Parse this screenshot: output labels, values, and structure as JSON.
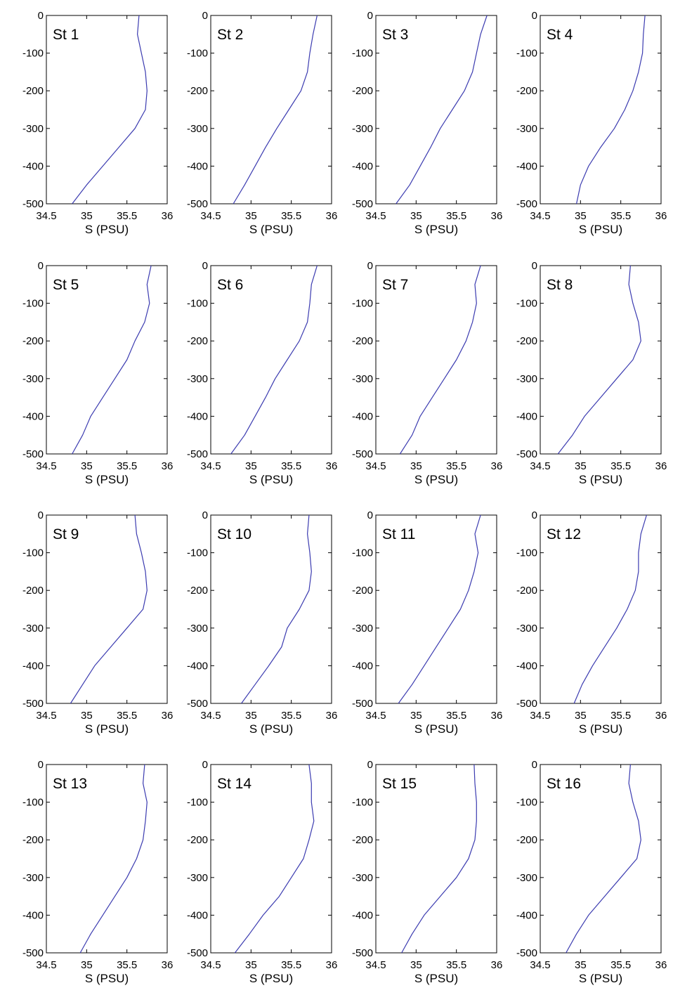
{
  "figure": {
    "line_color": "#3b3bb0"
  },
  "chart_data": [
    {
      "type": "line",
      "title": "St 1",
      "xlabel": "S (PSU)",
      "ylabel": "",
      "xlim": [
        34.5,
        36
      ],
      "ylim": [
        -500,
        0
      ],
      "xticks": [
        "34.5",
        "35",
        "35.5",
        "36"
      ],
      "yticks": [
        "0",
        "-100",
        "-200",
        "-300",
        "-400",
        "-500"
      ],
      "series": [
        {
          "x": [
            35.65,
            35.63,
            35.68,
            35.73,
            35.75,
            35.73,
            35.6,
            35.4,
            35.2,
            35.0,
            34.82
          ],
          "y": [
            0,
            -50,
            -100,
            -150,
            -200,
            -250,
            -300,
            -350,
            -400,
            -450,
            -500
          ]
        }
      ]
    },
    {
      "type": "line",
      "title": "St 2",
      "xlabel": "S (PSU)",
      "ylabel": "",
      "xlim": [
        34.5,
        36
      ],
      "ylim": [
        -500,
        0
      ],
      "xticks": [
        "34.5",
        "35",
        "35.5",
        "36"
      ],
      "yticks": [
        "0",
        "-100",
        "-200",
        "-300",
        "-400",
        "-500"
      ],
      "series": [
        {
          "x": [
            35.82,
            35.77,
            35.73,
            35.7,
            35.62,
            35.47,
            35.32,
            35.18,
            35.05,
            34.92,
            34.78
          ],
          "y": [
            0,
            -50,
            -100,
            -150,
            -200,
            -250,
            -300,
            -350,
            -400,
            -450,
            -500
          ]
        }
      ]
    },
    {
      "type": "line",
      "title": "St 3",
      "xlabel": "S (PSU)",
      "ylabel": "",
      "xlim": [
        34.5,
        36
      ],
      "ylim": [
        -500,
        0
      ],
      "xticks": [
        "34.5",
        "35",
        "35.5",
        "36"
      ],
      "yticks": [
        "0",
        "-100",
        "-200",
        "-300",
        "-400",
        "-500"
      ],
      "series": [
        {
          "x": [
            35.88,
            35.8,
            35.75,
            35.7,
            35.6,
            35.45,
            35.3,
            35.18,
            35.05,
            34.92,
            34.75
          ],
          "y": [
            0,
            -50,
            -100,
            -150,
            -200,
            -250,
            -300,
            -350,
            -400,
            -450,
            -500
          ]
        }
      ]
    },
    {
      "type": "line",
      "title": "St 4",
      "xlabel": "S (PSU)",
      "ylabel": "",
      "xlim": [
        34.5,
        36
      ],
      "ylim": [
        -500,
        0
      ],
      "xticks": [
        "34.5",
        "35",
        "35.5",
        "36"
      ],
      "yticks": [
        "0",
        "-100",
        "-200",
        "-300",
        "-400",
        "-500"
      ],
      "series": [
        {
          "x": [
            35.8,
            35.78,
            35.77,
            35.72,
            35.65,
            35.55,
            35.42,
            35.25,
            35.1,
            35.0,
            34.95
          ],
          "y": [
            0,
            -50,
            -100,
            -150,
            -200,
            -250,
            -300,
            -350,
            -400,
            -450,
            -500
          ]
        }
      ]
    },
    {
      "type": "line",
      "title": "St 5",
      "xlabel": "S (PSU)",
      "ylabel": "",
      "xlim": [
        34.5,
        36
      ],
      "ylim": [
        -500,
        0
      ],
      "xticks": [
        "34.5",
        "35",
        "35.5",
        "36"
      ],
      "yticks": [
        "0",
        "-100",
        "-200",
        "-300",
        "-400",
        "-500"
      ],
      "series": [
        {
          "x": [
            35.8,
            35.75,
            35.78,
            35.72,
            35.6,
            35.5,
            35.35,
            35.2,
            35.05,
            34.95,
            34.82
          ],
          "y": [
            0,
            -50,
            -100,
            -150,
            -200,
            -250,
            -300,
            -350,
            -400,
            -450,
            -500
          ]
        }
      ]
    },
    {
      "type": "line",
      "title": "St 6",
      "xlabel": "S (PSU)",
      "ylabel": "",
      "xlim": [
        34.5,
        36
      ],
      "ylim": [
        -500,
        0
      ],
      "xticks": [
        "34.5",
        "35",
        "35.5",
        "36"
      ],
      "yticks": [
        "0",
        "-100",
        "-200",
        "-300",
        "-400",
        "-500"
      ],
      "series": [
        {
          "x": [
            35.82,
            35.75,
            35.73,
            35.7,
            35.6,
            35.45,
            35.3,
            35.18,
            35.05,
            34.92,
            34.75
          ],
          "y": [
            0,
            -50,
            -100,
            -150,
            -200,
            -250,
            -300,
            -350,
            -400,
            -450,
            -500
          ]
        }
      ]
    },
    {
      "type": "line",
      "title": "St 7",
      "xlabel": "S (PSU)",
      "ylabel": "",
      "xlim": [
        34.5,
        36
      ],
      "ylim": [
        -500,
        0
      ],
      "xticks": [
        "34.5",
        "35",
        "35.5",
        "36"
      ],
      "yticks": [
        "0",
        "-100",
        "-200",
        "-300",
        "-400",
        "-500"
      ],
      "series": [
        {
          "x": [
            35.8,
            35.73,
            35.75,
            35.7,
            35.62,
            35.5,
            35.35,
            35.2,
            35.05,
            34.95,
            34.8
          ],
          "y": [
            0,
            -50,
            -100,
            -150,
            -200,
            -250,
            -300,
            -350,
            -400,
            -450,
            -500
          ]
        }
      ]
    },
    {
      "type": "line",
      "title": "St 8",
      "xlabel": "S (PSU)",
      "ylabel": "",
      "xlim": [
        34.5,
        36
      ],
      "ylim": [
        -500,
        0
      ],
      "xticks": [
        "34.5",
        "35",
        "35.5",
        "36"
      ],
      "yticks": [
        "0",
        "-100",
        "-200",
        "-300",
        "-400",
        "-500"
      ],
      "series": [
        {
          "x": [
            35.62,
            35.6,
            35.65,
            35.72,
            35.75,
            35.65,
            35.45,
            35.25,
            35.05,
            34.9,
            34.72
          ],
          "y": [
            0,
            -50,
            -100,
            -150,
            -200,
            -250,
            -300,
            -350,
            -400,
            -450,
            -500
          ]
        }
      ]
    },
    {
      "type": "line",
      "title": "St 9",
      "xlabel": "S (PSU)",
      "ylabel": "",
      "xlim": [
        34.5,
        36
      ],
      "ylim": [
        -500,
        0
      ],
      "xticks": [
        "34.5",
        "35",
        "35.5",
        "36"
      ],
      "yticks": [
        "0",
        "-100",
        "-200",
        "-300",
        "-400",
        "-500"
      ],
      "series": [
        {
          "x": [
            35.6,
            35.62,
            35.68,
            35.73,
            35.75,
            35.7,
            35.5,
            35.3,
            35.1,
            34.95,
            34.8
          ],
          "y": [
            0,
            -50,
            -100,
            -150,
            -200,
            -250,
            -300,
            -350,
            -400,
            -450,
            -500
          ]
        }
      ]
    },
    {
      "type": "line",
      "title": "St 10",
      "xlabel": "S (PSU)",
      "ylabel": "",
      "xlim": [
        34.5,
        36
      ],
      "ylim": [
        -500,
        0
      ],
      "xticks": [
        "34.5",
        "35",
        "35.5",
        "36"
      ],
      "yticks": [
        "0",
        "-100",
        "-200",
        "-300",
        "-400",
        "-500"
      ],
      "series": [
        {
          "x": [
            35.72,
            35.7,
            35.73,
            35.75,
            35.72,
            35.6,
            35.45,
            35.38,
            35.22,
            35.05,
            34.88
          ],
          "y": [
            0,
            -50,
            -100,
            -150,
            -200,
            -250,
            -300,
            -350,
            -400,
            -450,
            -500
          ]
        }
      ]
    },
    {
      "type": "line",
      "title": "St 11",
      "xlabel": "S (PSU)",
      "ylabel": "",
      "xlim": [
        34.5,
        36
      ],
      "ylim": [
        -500,
        0
      ],
      "xticks": [
        "34.5",
        "35",
        "35.5",
        "36"
      ],
      "yticks": [
        "0",
        "-100",
        "-200",
        "-300",
        "-400",
        "-500"
      ],
      "series": [
        {
          "x": [
            35.8,
            35.73,
            35.77,
            35.72,
            35.65,
            35.55,
            35.4,
            35.25,
            35.1,
            34.95,
            34.78
          ],
          "y": [
            0,
            -50,
            -100,
            -150,
            -200,
            -250,
            -300,
            -350,
            -400,
            -450,
            -500
          ]
        }
      ]
    },
    {
      "type": "line",
      "title": "St 12",
      "xlabel": "S (PSU)",
      "ylabel": "",
      "xlim": [
        34.5,
        36
      ],
      "ylim": [
        -500,
        0
      ],
      "xticks": [
        "34.5",
        "35",
        "35.5",
        "36"
      ],
      "yticks": [
        "0",
        "-100",
        "-200",
        "-300",
        "-400",
        "-500"
      ],
      "series": [
        {
          "x": [
            35.82,
            35.75,
            35.72,
            35.72,
            35.68,
            35.58,
            35.45,
            35.3,
            35.15,
            35.02,
            34.92
          ],
          "y": [
            0,
            -50,
            -100,
            -150,
            -200,
            -250,
            -300,
            -350,
            -400,
            -450,
            -500
          ]
        }
      ]
    },
    {
      "type": "line",
      "title": "St 13",
      "xlabel": "S (PSU)",
      "ylabel": "",
      "xlim": [
        34.5,
        36
      ],
      "ylim": [
        -500,
        0
      ],
      "xticks": [
        "34.5",
        "35",
        "35.5",
        "36"
      ],
      "yticks": [
        "0",
        "-100",
        "-200",
        "-300",
        "-400",
        "-500"
      ],
      "series": [
        {
          "x": [
            35.72,
            35.7,
            35.75,
            35.73,
            35.7,
            35.62,
            35.5,
            35.35,
            35.2,
            35.05,
            34.92
          ],
          "y": [
            0,
            -50,
            -100,
            -150,
            -200,
            -250,
            -300,
            -350,
            -400,
            -450,
            -500
          ]
        }
      ]
    },
    {
      "type": "line",
      "title": "St 14",
      "xlabel": "S (PSU)",
      "ylabel": "",
      "xlim": [
        34.5,
        36
      ],
      "ylim": [
        -500,
        0
      ],
      "xticks": [
        "34.5",
        "35",
        "35.5",
        "36"
      ],
      "yticks": [
        "0",
        "-100",
        "-200",
        "-300",
        "-400",
        "-500"
      ],
      "series": [
        {
          "x": [
            35.72,
            35.75,
            35.75,
            35.78,
            35.72,
            35.65,
            35.5,
            35.35,
            35.15,
            34.98,
            34.8
          ],
          "y": [
            0,
            -50,
            -100,
            -150,
            -200,
            -250,
            -300,
            -350,
            -400,
            -450,
            -500
          ]
        }
      ]
    },
    {
      "type": "line",
      "title": "St 15",
      "xlabel": "S (PSU)",
      "ylabel": "",
      "xlim": [
        34.5,
        36
      ],
      "ylim": [
        -500,
        0
      ],
      "xticks": [
        "34.5",
        "35",
        "35.5",
        "36"
      ],
      "yticks": [
        "0",
        "-100",
        "-200",
        "-300",
        "-400",
        "-500"
      ],
      "series": [
        {
          "x": [
            35.72,
            35.73,
            35.75,
            35.75,
            35.73,
            35.65,
            35.5,
            35.3,
            35.1,
            34.95,
            34.82
          ],
          "y": [
            0,
            -50,
            -100,
            -150,
            -200,
            -250,
            -300,
            -350,
            -400,
            -450,
            -500
          ]
        }
      ]
    },
    {
      "type": "line",
      "title": "St 16",
      "xlabel": "S (PSU)",
      "ylabel": "",
      "xlim": [
        34.5,
        36
      ],
      "ylim": [
        -500,
        0
      ],
      "xticks": [
        "34.5",
        "35",
        "35.5",
        "36"
      ],
      "yticks": [
        "0",
        "-100",
        "-200",
        "-300",
        "-400",
        "-500"
      ],
      "series": [
        {
          "x": [
            35.62,
            35.6,
            35.65,
            35.72,
            35.75,
            35.7,
            35.5,
            35.3,
            35.1,
            34.95,
            34.82
          ],
          "y": [
            0,
            -50,
            -100,
            -150,
            -200,
            -250,
            -300,
            -350,
            -400,
            -450,
            -500
          ]
        }
      ]
    }
  ]
}
